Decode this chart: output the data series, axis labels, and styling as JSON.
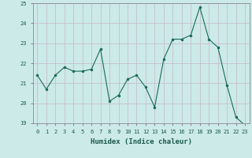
{
  "x": [
    0,
    1,
    2,
    3,
    4,
    5,
    6,
    7,
    8,
    9,
    10,
    11,
    12,
    13,
    14,
    15,
    16,
    17,
    18,
    19,
    20,
    21,
    22,
    23
  ],
  "y": [
    21.4,
    20.7,
    21.4,
    21.8,
    21.6,
    21.6,
    21.7,
    22.7,
    20.1,
    20.4,
    21.2,
    21.4,
    20.8,
    19.8,
    22.2,
    23.2,
    23.2,
    23.4,
    24.8,
    23.2,
    22.8,
    20.9,
    19.3,
    18.9
  ],
  "line_color": "#1a6b5a",
  "marker": ".",
  "marker_size": 3,
  "bg_color": "#cceae7",
  "grid_color_major": "#c4b8c8",
  "grid_color_minor": "#c4b8c8",
  "xlabel": "Humidex (Indice chaleur)",
  "ylim": [
    19,
    25
  ],
  "xlim_min": -0.5,
  "xlim_max": 23.5,
  "yticks": [
    19,
    20,
    21,
    22,
    23,
    24,
    25
  ],
  "xticks": [
    0,
    1,
    2,
    3,
    4,
    5,
    6,
    7,
    8,
    9,
    10,
    11,
    12,
    13,
    14,
    15,
    16,
    17,
    18,
    19,
    20,
    21,
    22,
    23
  ],
  "tick_label_color": "#1a5a4a",
  "xlabel_color": "#1a5a4a",
  "spine_color": "#8a8a9a",
  "tick_fontsize": 5,
  "xlabel_fontsize": 6.5
}
